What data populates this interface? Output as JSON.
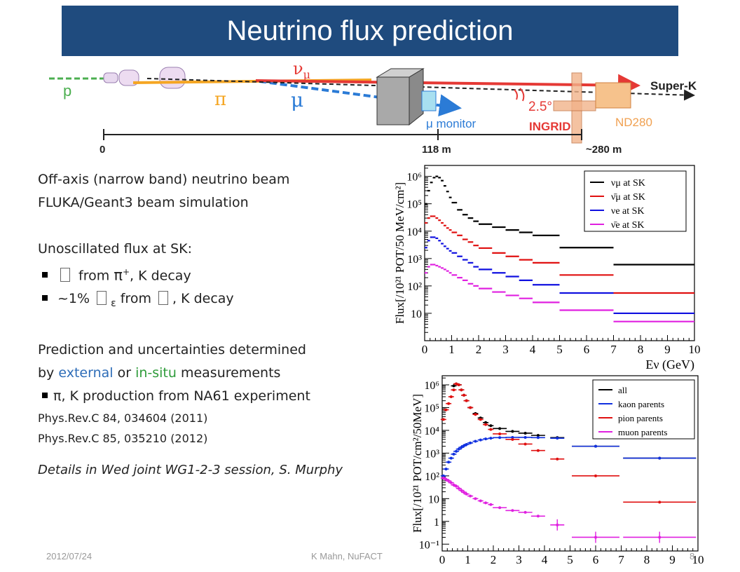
{
  "slide": {
    "title": "Neutrino flux prediction",
    "footer": {
      "date": "2012/07/24",
      "author": "K Mahn, NuFACT",
      "page": "8"
    }
  },
  "beamline": {
    "labels": {
      "proton": "p",
      "pion": "π",
      "muon": "μ",
      "numu": "ν",
      "numu_sub": "μ",
      "angle": "2.5°",
      "monitor": "μ monitor",
      "ingrid": "INGRID",
      "nd280": "ND280",
      "superk": "Super-K",
      "d0": "0",
      "d1": "118 m",
      "d2": "~280 m"
    },
    "colors": {
      "proton": "#4caf50",
      "pion": "#f5a623",
      "muon": "#2b7bd6",
      "numu": "#e53935",
      "text_blue": "#2b7bd6",
      "text_red": "#e53935",
      "nd280": "#f0a050"
    }
  },
  "bullets": {
    "l1": "Off-axis (narrow band) neutrino beam",
    "l2": "FLUKA/Geant3 beam simulation",
    "l3": "Unoscillated flux at SK:",
    "b1_a": "from",
    "b1_b": "π",
    "b1_sup": "+",
    "b1_c": ", K decay",
    "b2_a": "~1%",
    "b2_sub": "ε",
    "b2_b": "from",
    "b2_c": ",  K decay",
    "l4": "Prediction and uncertainties determined",
    "l5_a": "by ",
    "l5_ext": "external",
    "l5_or": " or ",
    "l5_in": "in-situ",
    "l5_end": " measurements",
    "b3": "π, K production from NA61 experiment",
    "ref1": "Phys.Rev.C 84, 034604 (2011)",
    "ref2": "Phys.Rev.C 85, 035210 (2012)",
    "details": "Details in Wed joint WG1-2-3 session, S. Murphy"
  },
  "chart_data": [
    {
      "type": "line",
      "ylabel": "Flux[/10²¹ POT/50 MeV/cm²]",
      "xlabel": "Eν (GeV)",
      "xlim": [
        0,
        10
      ],
      "ylim_log10": [
        0,
        6.4
      ],
      "yscale": "log",
      "x_ticks": [
        "0",
        "1",
        "2",
        "3",
        "4",
        "5",
        "6",
        "7",
        "8",
        "9",
        "10"
      ],
      "y_ticks": [
        "10",
        "10²",
        "10³",
        "10⁴",
        "10⁵",
        "10⁶"
      ],
      "legend_position": "top-right",
      "x_edges": [
        0,
        0.1,
        0.2,
        0.3,
        0.4,
        0.5,
        0.6,
        0.7,
        0.8,
        0.9,
        1.0,
        1.2,
        1.4,
        1.6,
        1.8,
        2.0,
        2.5,
        3.0,
        3.5,
        4.0,
        5.0,
        7.0,
        10.0
      ],
      "series": [
        {
          "name": "νμ at SK",
          "color": "#000000",
          "values": [
            100000.0,
            300000.0,
            600000.0,
            900000.0,
            1000000.0,
            900000.0,
            700000.0,
            450000.0,
            280000.0,
            170000.0,
            110000.0,
            60000.0,
            40000.0,
            30000.0,
            23000.0,
            18000.0,
            14000.0,
            11000.0,
            9000.0,
            7000.0,
            2500.0,
            600.0
          ]
        },
        {
          "name": "ν̄μ at SK",
          "color": "#e01010",
          "values": [
            20000.0,
            30000.0,
            35000.0,
            35000.0,
            30000.0,
            25000.0,
            20000.0,
            16000.0,
            13000.0,
            11000.0,
            9000.0,
            7000.0,
            5000.0,
            4000.0,
            3000.0,
            2400.0,
            1600.0,
            1200.0,
            900.0,
            700.0,
            250.0,
            55.0
          ]
        },
        {
          "name": "νe at SK",
          "color": "#1010e0",
          "values": [
            2500.0,
            4500.0,
            6000.0,
            6000.0,
            5500.0,
            4500.0,
            3500.0,
            2800.0,
            2300.0,
            1900.0,
            1600.0,
            1200.0,
            900.0,
            700.0,
            500.0,
            400.0,
            300.0,
            220.0,
            160.0,
            110.0,
            55.0,
            10.0
          ]
        },
        {
          "name": "ν̄e at SK",
          "color": "#e020e0",
          "values": [
            300.0,
            500.0,
            600.0,
            600.0,
            550.0,
            500.0,
            450.0,
            400.0,
            350.0,
            300.0,
            250.0,
            200.0,
            160.0,
            120.0,
            100.0,
            80.0,
            60.0,
            45.0,
            35.0,
            25.0,
            13.0,
            5.0
          ]
        }
      ]
    },
    {
      "type": "scatter",
      "ylabel": "Flux[/10²¹ POT/cm²/50MeV]",
      "xlim": [
        0,
        10
      ],
      "ylim_log10": [
        -1.3,
        6.4
      ],
      "yscale": "log",
      "x_ticks": [
        "0",
        "1",
        "2",
        "3",
        "4",
        "5",
        "6",
        "7",
        "8",
        "9",
        "10"
      ],
      "y_ticks": [
        "10⁻¹",
        "1",
        "10",
        "10²",
        "10³",
        "10⁴",
        "10⁵",
        "10⁶"
      ],
      "legend_position": "top-right",
      "series": [
        {
          "name": "all",
          "color": "#000000",
          "points": [
            [
              0.45,
              900000.0
            ],
            [
              0.55,
              1100000.0
            ],
            [
              0.65,
              1000000.0
            ],
            [
              0.75,
              600000.0
            ],
            [
              0.85,
              350000.0
            ],
            [
              0.95,
              200000.0
            ],
            [
              1.1,
              100000.0
            ],
            [
              1.3,
              55000.0
            ],
            [
              1.5,
              35000.0
            ],
            [
              1.7,
              22000.0
            ],
            [
              1.9,
              16000.0
            ],
            [
              2.25,
              12000.0
            ],
            [
              2.75,
              9000.0
            ],
            [
              3.25,
              7500.0
            ],
            [
              3.75,
              6000.0
            ],
            [
              4.5,
              4800.0
            ],
            [
              6.0,
              2000.0
            ],
            [
              8.5,
              600.0
            ]
          ]
        },
        {
          "name": "kaon parents",
          "color": "#1030e0",
          "points": [
            [
              0.05,
              100.0
            ],
            [
              0.15,
              200.0
            ],
            [
              0.25,
              400.0
            ],
            [
              0.35,
              600.0
            ],
            [
              0.45,
              900.0
            ],
            [
              0.55,
              1200.0
            ],
            [
              0.65,
              1500.0
            ],
            [
              0.75,
              1800.0
            ],
            [
              0.85,
              2100.0
            ],
            [
              0.95,
              2400.0
            ],
            [
              1.1,
              2800.0
            ],
            [
              1.3,
              3300.0
            ],
            [
              1.5,
              3800.0
            ],
            [
              1.7,
              4200.0
            ],
            [
              1.9,
              4500.0
            ],
            [
              2.25,
              4800.0
            ],
            [
              2.75,
              4900.0
            ],
            [
              3.25,
              4900.0
            ],
            [
              3.75,
              4800.0
            ],
            [
              4.5,
              4500.0
            ],
            [
              6.0,
              2000.0
            ],
            [
              8.5,
              600.0
            ]
          ]
        },
        {
          "name": "pion parents",
          "color": "#e01010",
          "points": [
            [
              0.05,
              30000.0
            ],
            [
              0.15,
              80000.0
            ],
            [
              0.25,
              150000.0
            ],
            [
              0.35,
              300000.0
            ],
            [
              0.45,
              600000.0
            ],
            [
              0.55,
              1100000.0
            ],
            [
              0.65,
              1000000.0
            ],
            [
              0.75,
              600000.0
            ],
            [
              0.85,
              350000.0
            ],
            [
              0.95,
              200000.0
            ],
            [
              1.1,
              100000.0
            ],
            [
              1.3,
              50000.0
            ],
            [
              1.5,
              30000.0
            ],
            [
              1.7,
              18000.0
            ],
            [
              1.9,
              11000.0
            ],
            [
              2.25,
              7000.0
            ],
            [
              2.75,
              4000.0
            ],
            [
              3.25,
              2500.0
            ],
            [
              3.75,
              1300.0
            ],
            [
              4.5,
              550.0
            ],
            [
              6.0,
              100.0
            ],
            [
              8.5,
              7.0
            ]
          ]
        },
        {
          "name": "muon parents",
          "color": "#e020e0",
          "points": [
            [
              0.05,
              80.0
            ],
            [
              0.15,
              70.0
            ],
            [
              0.25,
              60.0
            ],
            [
              0.35,
              50.0
            ],
            [
              0.45,
              40.0
            ],
            [
              0.55,
              35.0
            ],
            [
              0.65,
              28.0
            ],
            [
              0.75,
              23.0
            ],
            [
              0.85,
              19.0
            ],
            [
              0.95,
              16.0
            ],
            [
              1.1,
              13.0
            ],
            [
              1.3,
              10.0
            ],
            [
              1.5,
              8.0
            ],
            [
              1.7,
              6.5
            ],
            [
              1.9,
              5.5
            ],
            [
              2.25,
              4.0
            ],
            [
              2.75,
              3.0
            ],
            [
              3.25,
              2.5
            ],
            [
              3.75,
              1.7
            ],
            [
              4.5,
              0.7
            ],
            [
              6.0,
              0.2
            ],
            [
              8.5,
              0.2
            ]
          ]
        }
      ]
    }
  ]
}
